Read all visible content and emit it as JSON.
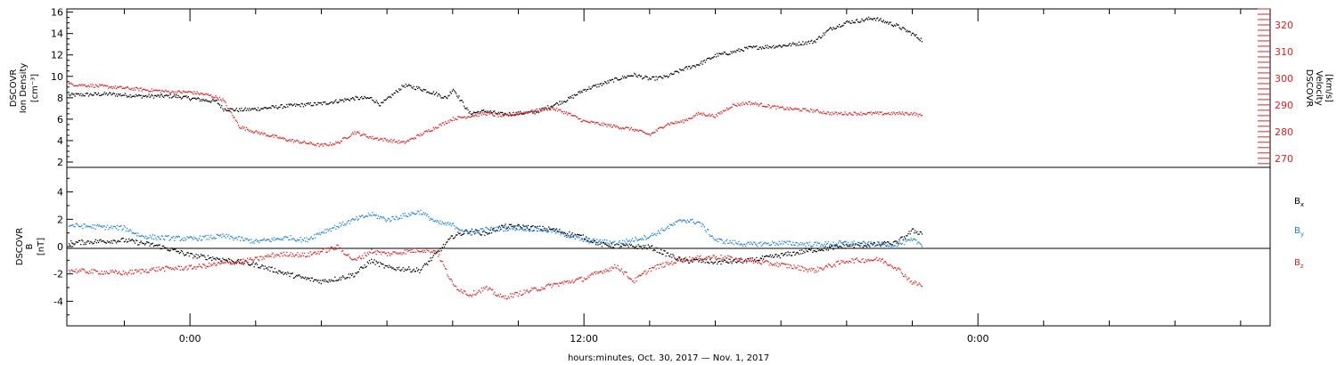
{
  "chart_data": [
    {
      "type": "scatter",
      "panel": "top",
      "y_left_label_lines": [
        "DSCOVR",
        "Ion Density",
        "[cm⁻³]"
      ],
      "y_right_label_lines": [
        "DSCOVR",
        "Velocity",
        "[km/s]"
      ],
      "ylim_left": [
        1.5,
        16.3
      ],
      "ylim_right": [
        266.6,
        326.0
      ],
      "yticks_left": [
        2,
        4,
        6,
        8,
        10,
        12,
        14,
        16
      ],
      "yticks_right": [
        270,
        280,
        290,
        300,
        310,
        320
      ],
      "xlim_hours": [
        -3.75,
        32.9
      ],
      "grid": false,
      "series": [
        {
          "name": "",
          "axis": "left",
          "color": "#000000",
          "x": [
            -3.7,
            -2.5,
            -1.5,
            -0.5,
            0.0,
            0.5,
            0.8,
            1.0,
            1.5,
            2.0,
            3.0,
            4.0,
            5.0,
            5.5,
            5.8,
            6.5,
            7.0,
            7.5,
            7.8,
            8.0,
            8.5,
            9.0,
            9.5,
            10.0,
            10.5,
            11.0,
            11.5,
            12.0,
            13.0,
            13.5,
            14.0,
            14.5,
            15.0,
            15.5,
            16.0,
            16.5,
            17.0,
            17.5,
            18.0,
            19.0,
            19.5,
            20.0,
            20.5,
            20.8,
            21.2,
            21.5,
            22.0,
            22.3
          ],
          "y": [
            8.3,
            8.4,
            8.2,
            8.2,
            8.0,
            7.8,
            7.7,
            7.0,
            6.9,
            7.0,
            7.3,
            7.5,
            8.0,
            8.0,
            7.4,
            9.2,
            8.9,
            8.4,
            8.0,
            8.9,
            6.6,
            6.8,
            6.5,
            6.6,
            6.7,
            7.3,
            7.9,
            8.8,
            9.8,
            10.2,
            9.8,
            10.0,
            10.7,
            11.2,
            12.0,
            12.3,
            12.7,
            12.8,
            12.9,
            13.3,
            14.5,
            15.1,
            15.3,
            15.5,
            15.1,
            14.8,
            14.0,
            13.4
          ]
        },
        {
          "name": "",
          "axis": "right",
          "color": "#e02020",
          "x": [
            -3.7,
            -2.5,
            -1.5,
            -0.5,
            0.0,
            0.5,
            0.8,
            1.0,
            1.5,
            2.0,
            3.0,
            4.0,
            4.5,
            5.0,
            5.5,
            6.0,
            6.5,
            7.0,
            7.5,
            8.0,
            8.5,
            9.0,
            9.5,
            10.0,
            10.5,
            11.0,
            11.5,
            12.0,
            13.0,
            13.5,
            14.0,
            14.5,
            15.0,
            15.5,
            16.0,
            16.5,
            17.0,
            17.5,
            18.0,
            19.0,
            19.5,
            20.0,
            20.5,
            21.0,
            21.5,
            22.0,
            22.3
          ],
          "y": [
            298,
            297,
            296,
            295,
            295,
            294,
            293,
            292,
            282,
            280,
            277,
            275,
            276,
            280,
            278,
            277,
            276,
            279,
            282,
            285,
            286,
            287,
            286,
            287,
            288,
            289,
            287,
            284,
            282,
            281,
            279,
            283,
            284,
            287,
            286,
            290,
            291,
            290,
            289,
            288,
            287,
            287,
            287,
            287,
            287,
            287,
            286
          ]
        }
      ]
    },
    {
      "type": "scatter",
      "panel": "bottom",
      "y_label_lines": [
        "DSCOVR",
        "B",
        "[nT]"
      ],
      "ylim": [
        -5.8,
        5.8
      ],
      "yticks": [
        -4,
        -2,
        0,
        2,
        4
      ],
      "zero_line": true,
      "xlim_hours": [
        -3.75,
        32.9
      ],
      "xticks_major": [
        {
          "hour": 0,
          "label": "0:00"
        },
        {
          "hour": 12,
          "label": "12:00"
        },
        {
          "hour": 24,
          "label": "0:00"
        }
      ],
      "xticks_minor_step_hours": 2,
      "xlabel": "hours:minutes, Oct. 30, 2017 — Nov.  1, 2017",
      "grid": false,
      "series": [
        {
          "name": "Bx",
          "color": "#000000",
          "x": [
            -3.7,
            -3.0,
            -2.0,
            -1.0,
            0.0,
            1.0,
            2.0,
            3.0,
            3.5,
            4.0,
            4.5,
            5.0,
            5.5,
            6.0,
            7.0,
            8.0,
            8.5,
            9.0,
            9.5,
            10.0,
            11.0,
            12.0,
            12.5,
            13.0,
            14.0,
            15.0,
            15.5,
            16.0,
            17.0,
            18.0,
            19.0,
            20.0,
            21.0,
            21.5,
            22.0,
            22.3
          ],
          "y": [
            0.3,
            0.4,
            0.5,
            0.1,
            -0.6,
            -0.9,
            -1.3,
            -2.0,
            -2.3,
            -2.5,
            -2.3,
            -2.0,
            -1.0,
            -1.5,
            -1.7,
            0.8,
            1.2,
            1.0,
            1.5,
            1.5,
            1.3,
            0.7,
            0.2,
            0.1,
            0.0,
            -1.0,
            -1.0,
            -1.1,
            -1.0,
            -0.6,
            -0.2,
            0.1,
            0.2,
            0.3,
            1.2,
            1.0
          ]
        },
        {
          "name": "By",
          "color": "#1a80e0",
          "x": [
            -3.7,
            -3.0,
            -2.0,
            -1.5,
            -1.0,
            0.0,
            1.0,
            2.0,
            3.0,
            3.5,
            4.0,
            5.0,
            5.5,
            6.0,
            7.0,
            7.5,
            8.0,
            8.5,
            9.0,
            10.0,
            11.0,
            12.0,
            13.0,
            14.0,
            15.0,
            15.5,
            16.0,
            17.0,
            18.0,
            19.0,
            20.0,
            21.0,
            21.5,
            22.0,
            22.3
          ],
          "y": [
            1.6,
            1.5,
            1.4,
            0.8,
            0.7,
            0.6,
            0.8,
            0.4,
            0.7,
            0.5,
            1.1,
            2.0,
            2.4,
            2.0,
            2.6,
            1.8,
            1.6,
            1.0,
            1.3,
            1.4,
            1.2,
            0.5,
            0.3,
            0.8,
            2.0,
            1.8,
            0.5,
            0.2,
            0.3,
            0.2,
            0.3,
            0.2,
            0.2,
            0.5,
            0.2
          ]
        },
        {
          "name": "Bz",
          "color": "#e02020",
          "x": [
            -3.7,
            -3.0,
            -2.0,
            -1.0,
            0.0,
            1.0,
            2.0,
            2.5,
            3.0,
            3.5,
            4.0,
            4.5,
            5.0,
            5.5,
            6.0,
            7.0,
            7.5,
            8.0,
            8.5,
            9.0,
            9.5,
            10.0,
            11.0,
            12.0,
            12.5,
            13.0,
            13.5,
            14.0,
            15.0,
            16.0,
            17.0,
            18.0,
            19.0,
            20.0,
            21.0,
            21.5,
            22.0,
            22.3
          ],
          "y": [
            -1.7,
            -1.8,
            -1.9,
            -1.6,
            -1.5,
            -1.2,
            -0.9,
            -0.6,
            -0.5,
            -0.6,
            -0.3,
            0.0,
            -1.0,
            -0.3,
            -0.5,
            -0.2,
            -0.3,
            -2.8,
            -3.5,
            -3.0,
            -3.7,
            -3.4,
            -2.8,
            -2.3,
            -1.8,
            -1.4,
            -2.5,
            -1.6,
            -0.9,
            -0.7,
            -1.0,
            -1.3,
            -1.7,
            -1.0,
            -0.9,
            -1.5,
            -2.6,
            -2.8
          ]
        }
      ]
    }
  ],
  "legend": [
    {
      "letter": "B",
      "sub": "x",
      "color": "#000000"
    },
    {
      "letter": "B",
      "sub": "y",
      "color": "#1a80e0"
    },
    {
      "letter": "B",
      "sub": "z",
      "color": "#e02020"
    }
  ]
}
